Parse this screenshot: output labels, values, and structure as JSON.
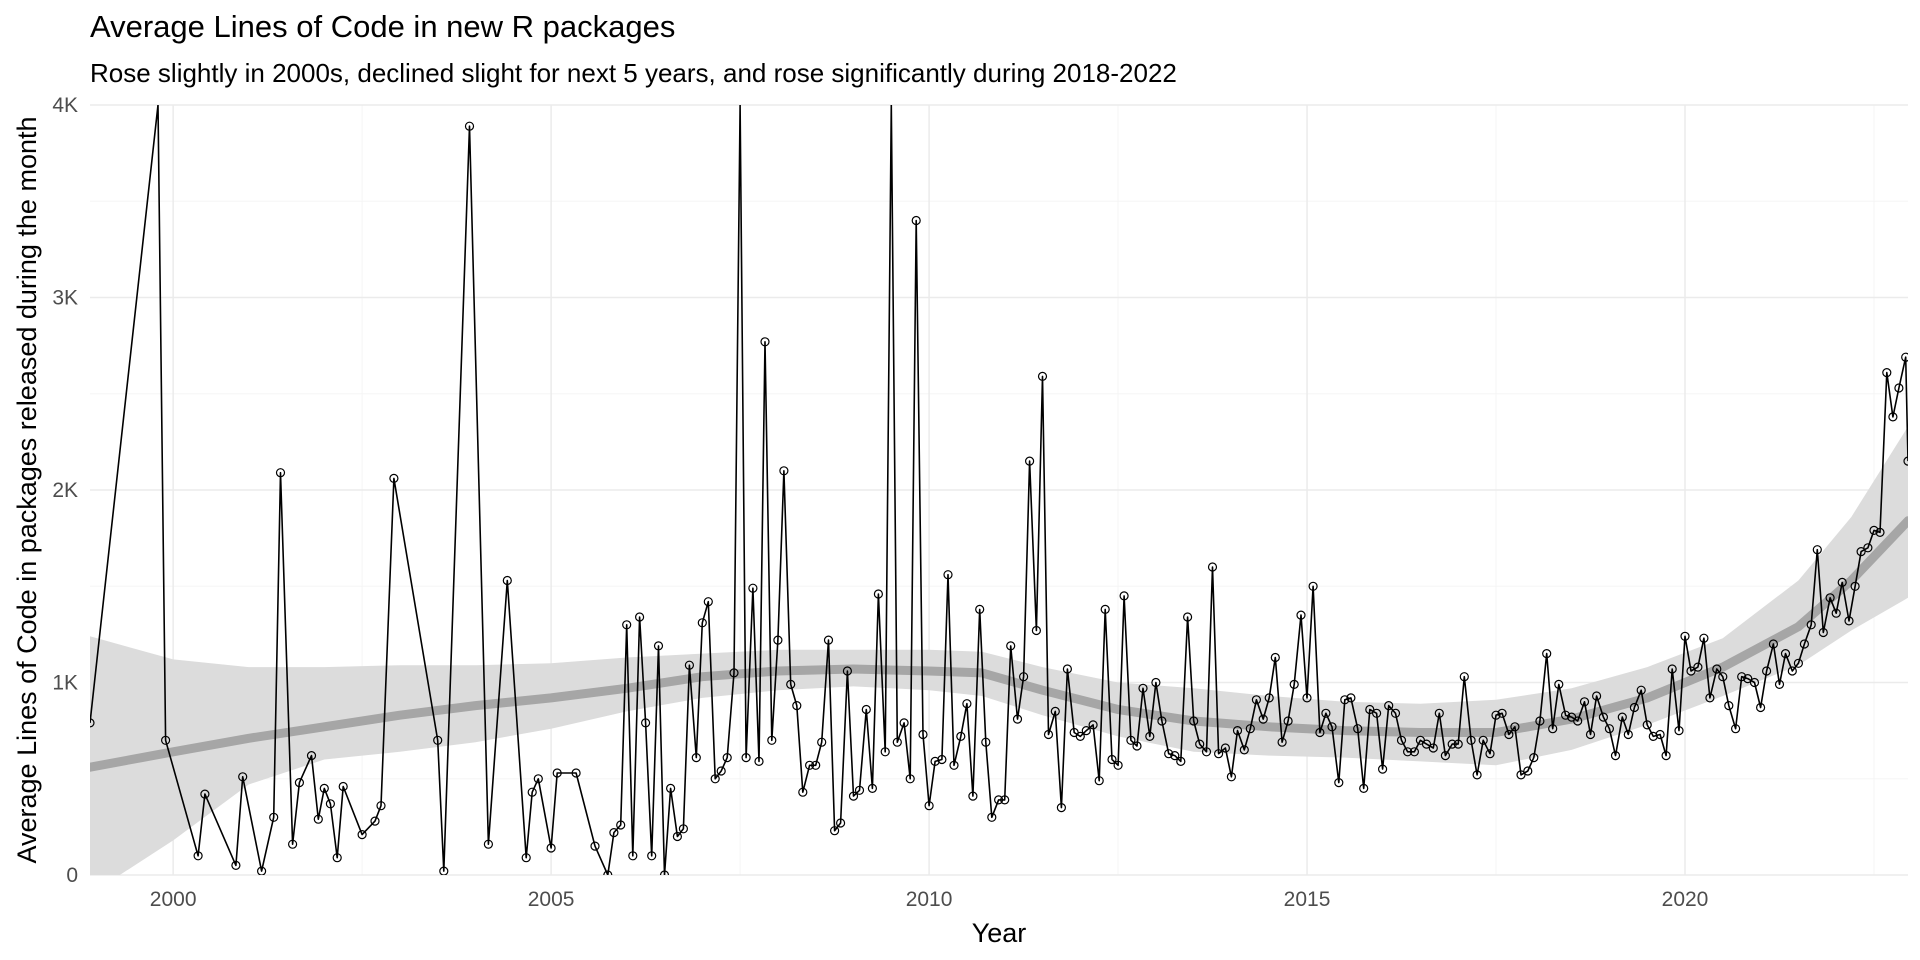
{
  "chart_data": {
    "type": "line",
    "title": "Average Lines of Code in new R packages",
    "subtitle": "Rose slightly in 2000s, declined slight for next 5 years, and rose significantly during 2018-2022",
    "xlabel": "Year",
    "ylabel": "Average Lines of Code in packages released during the month",
    "xlim": [
      1998.9,
      2022.95
    ],
    "ylim": [
      0,
      4000
    ],
    "x_ticks": [
      2000,
      2005,
      2010,
      2015,
      2020
    ],
    "x_tick_labels": [
      "2000",
      "2005",
      "2010",
      "2015",
      "2020"
    ],
    "y_ticks": [
      0,
      1000,
      2000,
      3000,
      4000
    ],
    "y_tick_labels": [
      "0",
      "1K",
      "2K",
      "3K",
      "4K"
    ],
    "grid": true,
    "legend": "none",
    "colors": {
      "line": "#000000",
      "point_stroke": "#000000",
      "smooth_line": "#a6a6a6",
      "ribbon": "#dcdcdc",
      "grid_major": "#ebebeb",
      "grid_minor": "#f5f5f5"
    },
    "series": [
      {
        "values": [
          [
            1998.9,
            790
          ],
          [
            1999.8,
            4000
          ],
          [
            1999.9,
            700
          ],
          [
            2000.33,
            100
          ],
          [
            2000.42,
            420
          ],
          [
            2000.83,
            50
          ],
          [
            2000.92,
            510
          ],
          [
            2001.17,
            20
          ],
          [
            2001.33,
            300
          ],
          [
            2001.42,
            2090
          ],
          [
            2001.58,
            160
          ],
          [
            2001.67,
            480
          ],
          [
            2001.83,
            620
          ],
          [
            2001.92,
            290
          ],
          [
            2002.0,
            450
          ],
          [
            2002.08,
            370
          ],
          [
            2002.17,
            90
          ],
          [
            2002.25,
            460
          ],
          [
            2002.5,
            210
          ],
          [
            2002.67,
            280
          ],
          [
            2002.75,
            360
          ],
          [
            2002.92,
            2060
          ],
          [
            2003.5,
            700
          ],
          [
            2003.58,
            20
          ],
          [
            2003.92,
            3890
          ],
          [
            2004.17,
            160
          ],
          [
            2004.42,
            1530
          ],
          [
            2004.67,
            90
          ],
          [
            2004.75,
            430
          ],
          [
            2004.83,
            500
          ],
          [
            2005.0,
            140
          ],
          [
            2005.08,
            530
          ],
          [
            2005.33,
            530
          ],
          [
            2005.58,
            150
          ],
          [
            2005.75,
            0
          ],
          [
            2005.83,
            220
          ],
          [
            2005.92,
            260
          ],
          [
            2006.0,
            1300
          ],
          [
            2006.08,
            100
          ],
          [
            2006.17,
            1340
          ],
          [
            2006.25,
            790
          ],
          [
            2006.33,
            100
          ],
          [
            2006.42,
            1190
          ],
          [
            2006.5,
            0
          ],
          [
            2006.58,
            450
          ],
          [
            2006.67,
            200
          ],
          [
            2006.75,
            240
          ],
          [
            2006.83,
            1090
          ],
          [
            2006.92,
            610
          ],
          [
            2007.0,
            1310
          ],
          [
            2007.08,
            1420
          ],
          [
            2007.17,
            500
          ],
          [
            2007.25,
            540
          ],
          [
            2007.33,
            610
          ],
          [
            2007.42,
            1050
          ],
          [
            2007.5,
            4000
          ],
          [
            2007.58,
            610
          ],
          [
            2007.67,
            1490
          ],
          [
            2007.75,
            590
          ],
          [
            2007.83,
            2770
          ],
          [
            2007.92,
            700
          ],
          [
            2008.0,
            1220
          ],
          [
            2008.08,
            2100
          ],
          [
            2008.17,
            990
          ],
          [
            2008.25,
            880
          ],
          [
            2008.33,
            430
          ],
          [
            2008.42,
            570
          ],
          [
            2008.5,
            570
          ],
          [
            2008.58,
            690
          ],
          [
            2008.67,
            1220
          ],
          [
            2008.75,
            230
          ],
          [
            2008.83,
            270
          ],
          [
            2008.92,
            1060
          ],
          [
            2009.0,
            410
          ],
          [
            2009.08,
            440
          ],
          [
            2009.17,
            860
          ],
          [
            2009.25,
            450
          ],
          [
            2009.33,
            1460
          ],
          [
            2009.42,
            640
          ],
          [
            2009.5,
            4000
          ],
          [
            2009.58,
            690
          ],
          [
            2009.67,
            790
          ],
          [
            2009.75,
            500
          ],
          [
            2009.83,
            3400
          ],
          [
            2009.92,
            730
          ],
          [
            2010.0,
            360
          ],
          [
            2010.08,
            590
          ],
          [
            2010.17,
            600
          ],
          [
            2010.25,
            1560
          ],
          [
            2010.33,
            570
          ],
          [
            2010.42,
            720
          ],
          [
            2010.5,
            890
          ],
          [
            2010.58,
            410
          ],
          [
            2010.67,
            1380
          ],
          [
            2010.75,
            690
          ],
          [
            2010.83,
            300
          ],
          [
            2010.92,
            390
          ],
          [
            2011.0,
            390
          ],
          [
            2011.08,
            1190
          ],
          [
            2011.17,
            810
          ],
          [
            2011.25,
            1030
          ],
          [
            2011.33,
            2150
          ],
          [
            2011.42,
            1270
          ],
          [
            2011.5,
            2590
          ],
          [
            2011.58,
            730
          ],
          [
            2011.67,
            850
          ],
          [
            2011.75,
            350
          ],
          [
            2011.83,
            1070
          ],
          [
            2011.92,
            740
          ],
          [
            2012.0,
            720
          ],
          [
            2012.08,
            750
          ],
          [
            2012.17,
            780
          ],
          [
            2012.25,
            490
          ],
          [
            2012.33,
            1380
          ],
          [
            2012.42,
            600
          ],
          [
            2012.5,
            570
          ],
          [
            2012.58,
            1450
          ],
          [
            2012.67,
            700
          ],
          [
            2012.75,
            670
          ],
          [
            2012.83,
            970
          ],
          [
            2012.92,
            720
          ],
          [
            2013.0,
            1000
          ],
          [
            2013.08,
            800
          ],
          [
            2013.17,
            630
          ],
          [
            2013.25,
            620
          ],
          [
            2013.33,
            590
          ],
          [
            2013.42,
            1340
          ],
          [
            2013.5,
            800
          ],
          [
            2013.58,
            680
          ],
          [
            2013.67,
            640
          ],
          [
            2013.75,
            1600
          ],
          [
            2013.83,
            630
          ],
          [
            2013.92,
            660
          ],
          [
            2014.0,
            510
          ],
          [
            2014.08,
            750
          ],
          [
            2014.17,
            650
          ],
          [
            2014.25,
            760
          ],
          [
            2014.33,
            910
          ],
          [
            2014.42,
            810
          ],
          [
            2014.5,
            920
          ],
          [
            2014.58,
            1130
          ],
          [
            2014.67,
            690
          ],
          [
            2014.75,
            800
          ],
          [
            2014.83,
            990
          ],
          [
            2014.92,
            1350
          ],
          [
            2015.0,
            920
          ],
          [
            2015.08,
            1500
          ],
          [
            2015.17,
            740
          ],
          [
            2015.25,
            840
          ],
          [
            2015.33,
            770
          ],
          [
            2015.42,
            480
          ],
          [
            2015.5,
            910
          ],
          [
            2015.58,
            920
          ],
          [
            2015.67,
            760
          ],
          [
            2015.75,
            450
          ],
          [
            2015.83,
            860
          ],
          [
            2015.92,
            840
          ],
          [
            2016.0,
            550
          ],
          [
            2016.08,
            880
          ],
          [
            2016.17,
            840
          ],
          [
            2016.25,
            700
          ],
          [
            2016.33,
            640
          ],
          [
            2016.42,
            640
          ],
          [
            2016.5,
            700
          ],
          [
            2016.58,
            680
          ],
          [
            2016.67,
            660
          ],
          [
            2016.75,
            840
          ],
          [
            2016.83,
            620
          ],
          [
            2016.92,
            680
          ],
          [
            2017.0,
            680
          ],
          [
            2017.08,
            1030
          ],
          [
            2017.17,
            700
          ],
          [
            2017.25,
            520
          ],
          [
            2017.33,
            700
          ],
          [
            2017.42,
            630
          ],
          [
            2017.5,
            830
          ],
          [
            2017.58,
            840
          ],
          [
            2017.67,
            730
          ],
          [
            2017.75,
            770
          ],
          [
            2017.83,
            520
          ],
          [
            2017.92,
            540
          ],
          [
            2018.0,
            610
          ],
          [
            2018.08,
            800
          ],
          [
            2018.17,
            1150
          ],
          [
            2018.25,
            760
          ],
          [
            2018.33,
            990
          ],
          [
            2018.42,
            830
          ],
          [
            2018.5,
            820
          ],
          [
            2018.58,
            800
          ],
          [
            2018.67,
            900
          ],
          [
            2018.75,
            730
          ],
          [
            2018.83,
            930
          ],
          [
            2018.92,
            820
          ],
          [
            2019.0,
            760
          ],
          [
            2019.08,
            620
          ],
          [
            2019.17,
            820
          ],
          [
            2019.25,
            730
          ],
          [
            2019.33,
            870
          ],
          [
            2019.42,
            960
          ],
          [
            2019.5,
            780
          ],
          [
            2019.58,
            720
          ],
          [
            2019.67,
            730
          ],
          [
            2019.75,
            620
          ],
          [
            2019.83,
            1070
          ],
          [
            2019.92,
            750
          ],
          [
            2020.0,
            1240
          ],
          [
            2020.08,
            1060
          ],
          [
            2020.17,
            1080
          ],
          [
            2020.25,
            1230
          ],
          [
            2020.33,
            920
          ],
          [
            2020.42,
            1070
          ],
          [
            2020.5,
            1030
          ],
          [
            2020.58,
            880
          ],
          [
            2020.67,
            760
          ],
          [
            2020.75,
            1030
          ],
          [
            2020.83,
            1020
          ],
          [
            2020.92,
            1000
          ],
          [
            2021.0,
            870
          ],
          [
            2021.08,
            1060
          ],
          [
            2021.17,
            1200
          ],
          [
            2021.25,
            990
          ],
          [
            2021.33,
            1150
          ],
          [
            2021.42,
            1060
          ],
          [
            2021.5,
            1100
          ],
          [
            2021.58,
            1200
          ],
          [
            2021.67,
            1300
          ],
          [
            2021.75,
            1690
          ],
          [
            2021.83,
            1260
          ],
          [
            2021.92,
            1440
          ],
          [
            2022.0,
            1360
          ],
          [
            2022.08,
            1520
          ],
          [
            2022.17,
            1320
          ],
          [
            2022.25,
            1500
          ],
          [
            2022.33,
            1680
          ],
          [
            2022.42,
            1700
          ],
          [
            2022.5,
            1790
          ],
          [
            2022.58,
            1780
          ],
          [
            2022.67,
            2610
          ],
          [
            2022.75,
            2380
          ],
          [
            2022.83,
            2530
          ],
          [
            2022.92,
            2690
          ],
          [
            2022.95,
            2150
          ]
        ]
      }
    ],
    "smooth": {
      "x": [
        1998.9,
        2000,
        2001,
        2002,
        2003,
        2004,
        2005,
        2006,
        2007,
        2008,
        2009,
        2010,
        2010.7,
        2011.5,
        2012.5,
        2013.5,
        2014.5,
        2015.5,
        2016.5,
        2017.5,
        2018.5,
        2019.5,
        2020.5,
        2021.5,
        2022.2,
        2022.95
      ],
      "y": [
        560,
        640,
        710,
        770,
        830,
        880,
        920,
        970,
        1030,
        1060,
        1070,
        1060,
        1050,
        960,
        860,
        800,
        770,
        750,
        740,
        740,
        810,
        920,
        1080,
        1290,
        1530,
        1840
      ],
      "lower": [
        -100,
        180,
        470,
        600,
        640,
        690,
        760,
        850,
        920,
        960,
        980,
        960,
        930,
        830,
        720,
        640,
        620,
        610,
        590,
        570,
        650,
        780,
        930,
        1090,
        1270,
        1440
      ],
      "upper": [
        1240,
        1120,
        1080,
        1080,
        1090,
        1090,
        1100,
        1130,
        1150,
        1170,
        1170,
        1170,
        1160,
        1080,
        1000,
        970,
        930,
        900,
        890,
        910,
        970,
        1080,
        1230,
        1530,
        1860,
        2330
      ]
    }
  }
}
